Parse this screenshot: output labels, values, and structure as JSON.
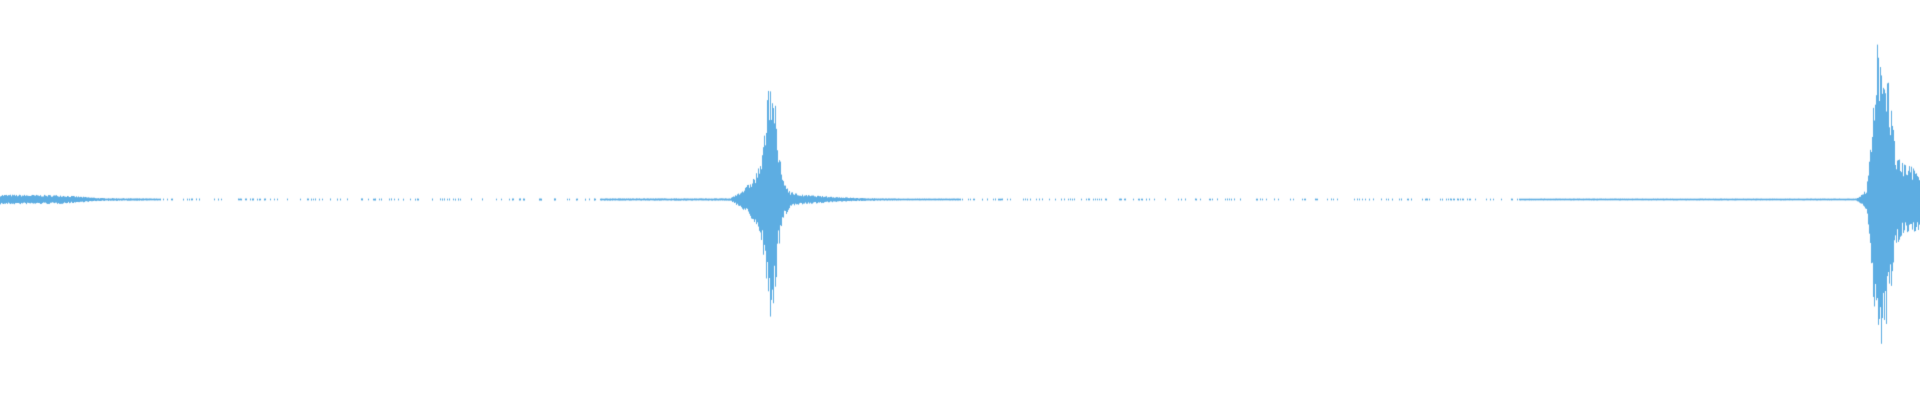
{
  "waveform": {
    "color": "#5DADE2",
    "background": "#FFFFFF"
  }
}
